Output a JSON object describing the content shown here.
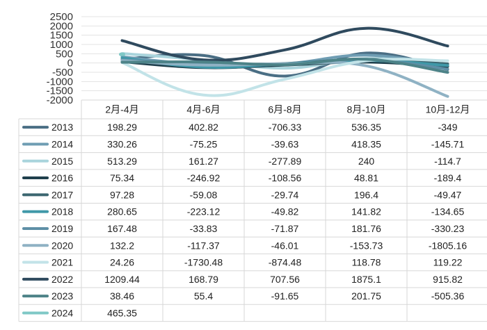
{
  "chart_data": {
    "type": "line",
    "categories": [
      "2月-4月",
      "4月-6月",
      "6月-8月",
      "8月-10月",
      "10月-12月"
    ],
    "ylim": [
      -2000,
      2500
    ],
    "yticks": [
      "2500",
      "2000",
      "1500",
      "1000",
      "500",
      "0",
      "-500",
      "-1000",
      "-1500",
      "-2000"
    ],
    "grid": true,
    "legend": "table-left",
    "series": [
      {
        "name": "2013",
        "color": "#4a6e84",
        "values": [
          198.29,
          402.82,
          -706.33,
          536.35,
          -349
        ]
      },
      {
        "name": "2014",
        "color": "#6f9db3",
        "values": [
          330.26,
          -75.25,
          -39.63,
          418.35,
          -145.71
        ]
      },
      {
        "name": "2015",
        "color": "#a9d4dc",
        "values": [
          513.29,
          161.27,
          -277.89,
          240,
          -114.7
        ]
      },
      {
        "name": "2016",
        "color": "#1f3f4c",
        "values": [
          75.34,
          -246.92,
          -108.56,
          48.81,
          -189.4
        ]
      },
      {
        "name": "2017",
        "color": "#3b6670",
        "values": [
          97.28,
          -59.08,
          -29.74,
          196.4,
          -49.47
        ]
      },
      {
        "name": "2018",
        "color": "#3f98a8",
        "values": [
          280.65,
          -223.12,
          -49.82,
          141.82,
          -134.65
        ]
      },
      {
        "name": "2019",
        "color": "#5e8fa6",
        "values": [
          167.48,
          -33.83,
          -71.87,
          181.76,
          -330.23
        ]
      },
      {
        "name": "2020",
        "color": "#8fb2c4",
        "values": [
          132.2,
          -117.37,
          -46.01,
          -153.73,
          -1805.16
        ]
      },
      {
        "name": "2021",
        "color": "#c2e3e8",
        "values": [
          24.26,
          -1730.48,
          -874.48,
          118.78,
          119.22
        ]
      },
      {
        "name": "2022",
        "color": "#2f4a5e",
        "values": [
          1209.44,
          168.79,
          707.56,
          1875.1,
          915.82
        ]
      },
      {
        "name": "2023",
        "color": "#4d8388",
        "values": [
          38.46,
          55.4,
          -91.65,
          201.75,
          -505.36
        ]
      },
      {
        "name": "2024",
        "color": "#7fc8c6",
        "values": [
          465.35,
          null,
          null,
          null,
          null
        ]
      }
    ],
    "cells": [
      [
        "198.29",
        "402.82",
        "-706.33",
        "536.35",
        "-349"
      ],
      [
        "330.26",
        "-75.25",
        "-39.63",
        "418.35",
        "-145.71"
      ],
      [
        "513.29",
        "161.27",
        "-277.89",
        "240",
        "-114.7"
      ],
      [
        "75.34",
        "-246.92",
        "-108.56",
        "48.81",
        "-189.4"
      ],
      [
        "97.28",
        "-59.08",
        "-29.74",
        "196.4",
        "-49.47"
      ],
      [
        "280.65",
        "-223.12",
        "-49.82",
        "141.82",
        "-134.65"
      ],
      [
        "167.48",
        "-33.83",
        "-71.87",
        "181.76",
        "-330.23"
      ],
      [
        "132.2",
        "-117.37",
        "-46.01",
        "-153.73",
        "-1805.16"
      ],
      [
        "24.26",
        "-1730.48",
        "-874.48",
        "118.78",
        "119.22"
      ],
      [
        "1209.44",
        "168.79",
        "707.56",
        "1875.1",
        "915.82"
      ],
      [
        "38.46",
        "55.4",
        "-91.65",
        "201.75",
        "-505.36"
      ],
      [
        "465.35",
        "",
        "",
        "",
        ""
      ]
    ]
  }
}
